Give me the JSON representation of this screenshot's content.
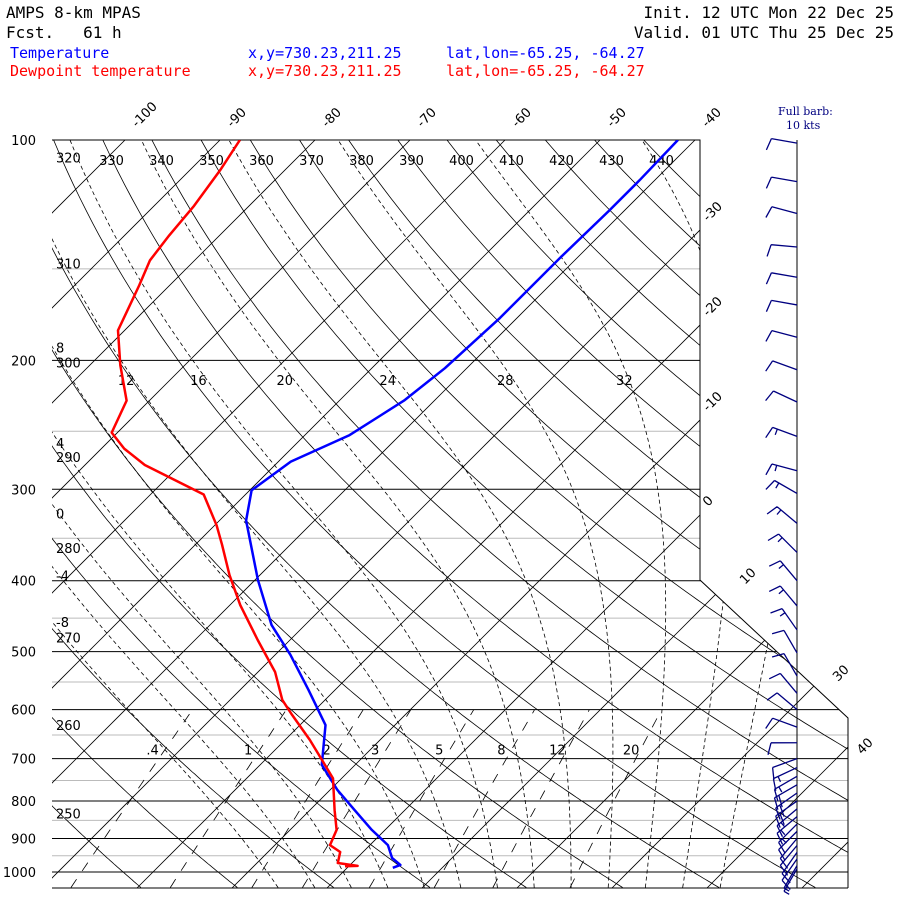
{
  "header": {
    "model": "AMPS 8-km MPAS",
    "fcst_label": "Fcst.",
    "fcst_value": "61 h",
    "init": "Init. 12 UTC Mon 22 Dec 25",
    "valid": "Valid. 01 UTC Thu 25 Dec 25",
    "legend": [
      {
        "name": "Temperature",
        "xy": "x,y=730.23,211.25",
        "latlon": "lat,lon=-65.25, -64.27",
        "color": "#0000ff"
      },
      {
        "name": "Dewpoint temperature",
        "xy": "x,y=730.23,211.25",
        "latlon": "lat,lon=-65.25, -64.27",
        "color": "#ff0000"
      }
    ]
  },
  "barb_legend": {
    "line1": "Full barb:",
    "line2": "10 kts"
  },
  "chart_data": {
    "type": "line",
    "subtype": "skew-T log-p",
    "ylabel": "Pressure (hPa)",
    "xlabel": "Temperature (C)",
    "ylim": [
      1000,
      100
    ],
    "pressure_ticks": [
      100,
      200,
      300,
      400,
      500,
      600,
      700,
      800,
      900,
      1000
    ],
    "isotherm_labels_top": [
      -100,
      -90,
      -80,
      -70,
      -60,
      -50,
      -40
    ],
    "isotherm_labels_right": [
      -30,
      -20,
      -10,
      0
    ],
    "isotherm_labels_lower": [
      10,
      30,
      40
    ],
    "dry_adiabat_labels": [
      250,
      260,
      270,
      280,
      290,
      300,
      310,
      320,
      330,
      340,
      350,
      360,
      370,
      380,
      390,
      400,
      410,
      420,
      430,
      440
    ],
    "moist_adiabat_labels": [
      -8,
      -4,
      0,
      4,
      8,
      12,
      16,
      20,
      24,
      28,
      32
    ],
    "mixing_ratio_labels": [
      ".4",
      "1",
      "2",
      "3",
      "5",
      "8",
      "12",
      "20"
    ],
    "mixing_ratio_values": [
      0.4,
      1,
      2,
      3,
      5,
      8,
      12,
      20
    ],
    "series": [
      {
        "name": "Temperature",
        "color": "#0000ff",
        "pressure": [
          100,
          113.5,
          125,
          145,
          175,
          205,
          227,
          253,
          275,
          301,
          331,
          399,
          460,
          505,
          564,
          630,
          714,
          773,
          823,
          876,
          919,
          957,
          978,
          987
        ],
        "values": [
          -41.8,
          -41.6,
          -41.6,
          -41.8,
          -41.8,
          -42.3,
          -43.2,
          -45.3,
          -48.7,
          -49.8,
          -47.2,
          -39.7,
          -33.5,
          -28.4,
          -22.8,
          -17.3,
          -13.5,
          -9.2,
          -5.3,
          -1.4,
          1.9,
          3.7,
          5.3,
          4.8
        ]
      },
      {
        "name": "Dewpoint temperature",
        "color": "#ff0000",
        "pressure": [
          100,
          110,
          123,
          135,
          146,
          158,
          182,
          203,
          227,
          251,
          264,
          278,
          296,
          305,
          336,
          357,
          393,
          432,
          482,
          533,
          582,
          610,
          660,
          703,
          745,
          823,
          876,
          919,
          939,
          972,
          981,
          982
        ],
        "values": [
          -87.9,
          -86.8,
          -85.8,
          -85.3,
          -84.7,
          -83.2,
          -80.7,
          -76.8,
          -72.4,
          -70.6,
          -67.6,
          -63.7,
          -57.4,
          -54.4,
          -49.8,
          -47.2,
          -43.2,
          -38.9,
          -33.4,
          -28.2,
          -24.5,
          -21.9,
          -17.4,
          -14.0,
          -10.9,
          -7.4,
          -5.1,
          -4.2,
          -2.4,
          -1.5,
          0.9,
          -0.4
        ]
      }
    ],
    "wind": {
      "pressure": [
        101,
        114,
        126,
        140,
        154,
        168,
        186,
        206,
        228,
        254,
        283,
        304,
        334,
        366,
        400,
        433,
        467,
        502,
        540,
        570,
        600,
        634,
        666,
        700,
        720,
        740,
        760,
        780,
        800,
        820,
        840,
        860,
        880,
        900,
        920,
        940,
        960,
        980,
        990
      ],
      "direction": [
        280,
        280,
        285,
        275,
        280,
        280,
        285,
        290,
        295,
        290,
        285,
        300,
        310,
        315,
        320,
        320,
        325,
        330,
        330,
        320,
        310,
        290,
        270,
        250,
        245,
        240,
        240,
        235,
        235,
        230,
        230,
        225,
        225,
        220,
        220,
        215,
        215,
        210,
        210
      ],
      "speed_kts": [
        10,
        10,
        10,
        10,
        10,
        10,
        10,
        10,
        10,
        15,
        15,
        15,
        15,
        15,
        15,
        15,
        15,
        10,
        10,
        10,
        10,
        10,
        10,
        10,
        15,
        15,
        20,
        20,
        20,
        15,
        15,
        15,
        10,
        10,
        10,
        10,
        10,
        5,
        5
      ]
    }
  }
}
